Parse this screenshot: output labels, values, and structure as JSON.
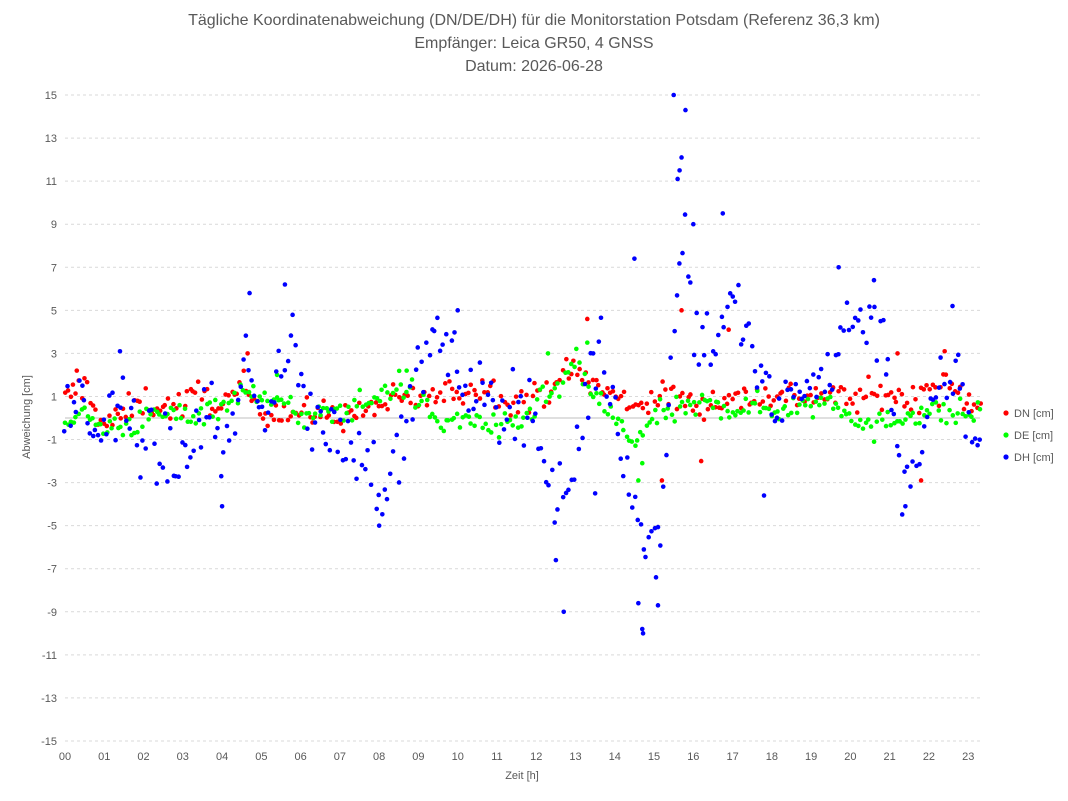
{
  "chart_data": {
    "type": "scatter",
    "title_lines": [
      "Tägliche Koordinatenabweichung (DN/DE/DH) für die Monitorstation Potsdam (Referenz 36,3 km)",
      "Empfänger: Leica GR50, 4 GNSS",
      "Datum: 2026-06-28"
    ],
    "xlabel": "Zeit [h]",
    "ylabel": "Abweichung [cm]",
    "xlim": [
      0,
      23.3
    ],
    "ylim": [
      -15,
      15
    ],
    "x_ticks": [
      "00",
      "01",
      "02",
      "03",
      "04",
      "05",
      "06",
      "07",
      "08",
      "09",
      "10",
      "11",
      "12",
      "13",
      "14",
      "15",
      "16",
      "17",
      "18",
      "19",
      "20",
      "21",
      "22",
      "23"
    ],
    "y_ticks": [
      15,
      13,
      11,
      9,
      7,
      5,
      3,
      1,
      -1,
      -3,
      -5,
      -7,
      -9,
      -11,
      -13,
      -15
    ],
    "grid": "horizontal dashed",
    "legend_position": "right",
    "series": [
      {
        "name": "DN [cm]",
        "color": "#ff0000",
        "anchors": [
          [
            0,
            0.8
          ],
          [
            0.5,
            1.6
          ],
          [
            1,
            -0.4
          ],
          [
            1.5,
            0.2
          ],
          [
            2,
            0.8
          ],
          [
            2.5,
            0.5
          ],
          [
            3,
            0.6
          ],
          [
            3.5,
            1.2
          ],
          [
            4,
            0.4
          ],
          [
            4.5,
            1.5
          ],
          [
            5,
            0.5
          ],
          [
            5.5,
            0.3
          ],
          [
            6,
            0.2
          ],
          [
            6.5,
            0.2
          ],
          [
            7,
            0.1
          ],
          [
            7.5,
            0.2
          ],
          [
            8,
            0.6
          ],
          [
            8.5,
            0.8
          ],
          [
            9,
            0.9
          ],
          [
            9.5,
            1.0
          ],
          [
            10,
            1.2
          ],
          [
            10.5,
            1.5
          ],
          [
            11,
            1.2
          ],
          [
            11.5,
            0.8
          ],
          [
            12,
            0.9
          ],
          [
            12.5,
            1.8
          ],
          [
            13,
            2.2
          ],
          [
            13.5,
            1.5
          ],
          [
            14,
            1.0
          ],
          [
            14.5,
            0.6
          ],
          [
            15,
            0.9
          ],
          [
            15.5,
            1.0
          ],
          [
            16,
            0.6
          ],
          [
            16.5,
            0.8
          ],
          [
            17,
            0.9
          ],
          [
            17.5,
            1.0
          ],
          [
            18,
            1.1
          ],
          [
            18.5,
            1.0
          ],
          [
            19,
            1.1
          ],
          [
            19.5,
            1.0
          ],
          [
            20,
            0.9
          ],
          [
            20.5,
            1.0
          ],
          [
            21,
            1.2
          ],
          [
            21.5,
            0.7
          ],
          [
            22,
            1.5
          ],
          [
            22.5,
            1.4
          ],
          [
            23,
            0.8
          ],
          [
            23.3,
            0.6
          ]
        ],
        "noise": 0.5,
        "outliers": [
          [
            4.65,
            3.0
          ],
          [
            13.3,
            4.6
          ],
          [
            15.7,
            5.0
          ],
          [
            16.9,
            4.1
          ],
          [
            21.2,
            3.0
          ],
          [
            22.4,
            3.1
          ],
          [
            16.2,
            -2.0
          ],
          [
            15.2,
            -2.9
          ],
          [
            21.8,
            -2.9
          ],
          [
            0.3,
            2.2
          ]
        ]
      },
      {
        "name": "DE [cm]",
        "color": "#00ff00",
        "anchors": [
          [
            0,
            0.2
          ],
          [
            0.5,
            0.1
          ],
          [
            1,
            -0.5
          ],
          [
            1.5,
            -0.3
          ],
          [
            2,
            -0.2
          ],
          [
            2.5,
            0.2
          ],
          [
            3,
            0.1
          ],
          [
            3.5,
            0.3
          ],
          [
            4,
            0.7
          ],
          [
            4.5,
            1.0
          ],
          [
            5,
            1.3
          ],
          [
            5.5,
            0.6
          ],
          [
            6,
            0.1
          ],
          [
            6.5,
            0.0
          ],
          [
            7,
            0.4
          ],
          [
            7.5,
            0.6
          ],
          [
            8,
            1.0
          ],
          [
            8.5,
            1.6
          ],
          [
            9,
            0.9
          ],
          [
            9.5,
            -0.2
          ],
          [
            10,
            -0.2
          ],
          [
            10.5,
            0.0
          ],
          [
            11,
            -0.6
          ],
          [
            11.5,
            -0.4
          ],
          [
            12,
            0.6
          ],
          [
            12.5,
            1.2
          ],
          [
            13,
            2.5
          ],
          [
            13.5,
            1.0
          ],
          [
            14,
            -0.1
          ],
          [
            14.5,
            -1.2
          ],
          [
            15,
            0.0
          ],
          [
            15.5,
            0.3
          ],
          [
            16,
            0.4
          ],
          [
            16.5,
            0.8
          ],
          [
            17,
            0.4
          ],
          [
            17.5,
            0.5
          ],
          [
            18,
            0.4
          ],
          [
            18.5,
            0.5
          ],
          [
            19,
            0.6
          ],
          [
            19.5,
            0.9
          ],
          [
            20,
            0.3
          ],
          [
            20.5,
            -0.6
          ],
          [
            21,
            -0.2
          ],
          [
            21.5,
            0.3
          ],
          [
            22,
            0.3
          ],
          [
            22.5,
            0.2
          ],
          [
            23,
            0.2
          ],
          [
            23.3,
            0.1
          ]
        ],
        "noise": 0.45,
        "outliers": [
          [
            14.6,
            -2.9
          ],
          [
            14.7,
            -2.1
          ],
          [
            13.3,
            3.5
          ],
          [
            12.3,
            3.0
          ],
          [
            8.7,
            2.2
          ],
          [
            5.4,
            2.0
          ]
        ]
      },
      {
        "name": "DH [cm]",
        "color": "#0000ff",
        "anchors": [
          [
            0,
            0.8
          ],
          [
            0.5,
            1.0
          ],
          [
            0.8,
            -1.5
          ],
          [
            1,
            0.0
          ],
          [
            1.5,
            0.2
          ],
          [
            2,
            -1.0
          ],
          [
            2.5,
            -1.8
          ],
          [
            3,
            -2.2
          ],
          [
            3.5,
            0.5
          ],
          [
            4,
            -1.5
          ],
          [
            4.5,
            1.5
          ],
          [
            4.7,
            3.5
          ],
          [
            5,
            -1.5
          ],
          [
            5.5,
            3.0
          ],
          [
            5.8,
            4.5
          ],
          [
            6,
            1.0
          ],
          [
            6.5,
            -0.5
          ],
          [
            7,
            -1.0
          ],
          [
            7.5,
            -1.5
          ],
          [
            8,
            -3.0
          ],
          [
            8.5,
            -2.0
          ],
          [
            9,
            2.5
          ],
          [
            9.5,
            3.5
          ],
          [
            10,
            2.0
          ],
          [
            10.5,
            1.2
          ],
          [
            11,
            0.5
          ],
          [
            11.5,
            0.8
          ],
          [
            12,
            0.5
          ],
          [
            12.3,
            -3.5
          ],
          [
            12.6,
            -4.0
          ],
          [
            12.9,
            -2.5
          ],
          [
            13.3,
            1.0
          ],
          [
            13.6,
            3.5
          ],
          [
            14,
            0.5
          ],
          [
            14.5,
            -4.0
          ],
          [
            14.8,
            -6.5
          ],
          [
            15.2,
            -4.0
          ],
          [
            15.5,
            5.0
          ],
          [
            15.8,
            9.0
          ],
          [
            16,
            4.0
          ],
          [
            16.5,
            3.5
          ],
          [
            17,
            5.5
          ],
          [
            17.5,
            3.0
          ],
          [
            18,
            0.3
          ],
          [
            18.5,
            0.8
          ],
          [
            19,
            1.5
          ],
          [
            19.5,
            2.5
          ],
          [
            20,
            4.5
          ],
          [
            20.5,
            5.0
          ],
          [
            21,
            2.5
          ],
          [
            21.3,
            -2.8
          ],
          [
            21.6,
            -2.5
          ],
          [
            22,
            0.0
          ],
          [
            22.5,
            2.0
          ],
          [
            22.8,
            1.8
          ],
          [
            23,
            -0.5
          ],
          [
            23.3,
            -1.0
          ]
        ],
        "noise": 1.2,
        "outliers": [
          [
            15.5,
            15.0
          ],
          [
            15.8,
            14.3
          ],
          [
            15.7,
            12.1
          ],
          [
            15.65,
            11.5
          ],
          [
            15.6,
            11.1
          ],
          [
            16,
            9.0
          ],
          [
            16.75,
            9.5
          ],
          [
            12.7,
            -9.0
          ],
          [
            14.7,
            -9.8
          ],
          [
            14.72,
            -10.0
          ],
          [
            15.1,
            -8.7
          ],
          [
            14.6,
            -8.6
          ],
          [
            15.05,
            -7.4
          ],
          [
            14.5,
            7.4
          ],
          [
            19.7,
            7.0
          ],
          [
            20.6,
            6.4
          ],
          [
            5.6,
            6.2
          ],
          [
            4.7,
            5.8
          ],
          [
            22.6,
            5.2
          ],
          [
            10,
            5.0
          ],
          [
            1.4,
            3.1
          ],
          [
            8.0,
            -5.0
          ],
          [
            4.0,
            -4.1
          ],
          [
            21.4,
            -4.1
          ],
          [
            12.5,
            -6.6
          ],
          [
            13.5,
            -3.5
          ],
          [
            17.8,
            -3.6
          ]
        ]
      }
    ]
  }
}
